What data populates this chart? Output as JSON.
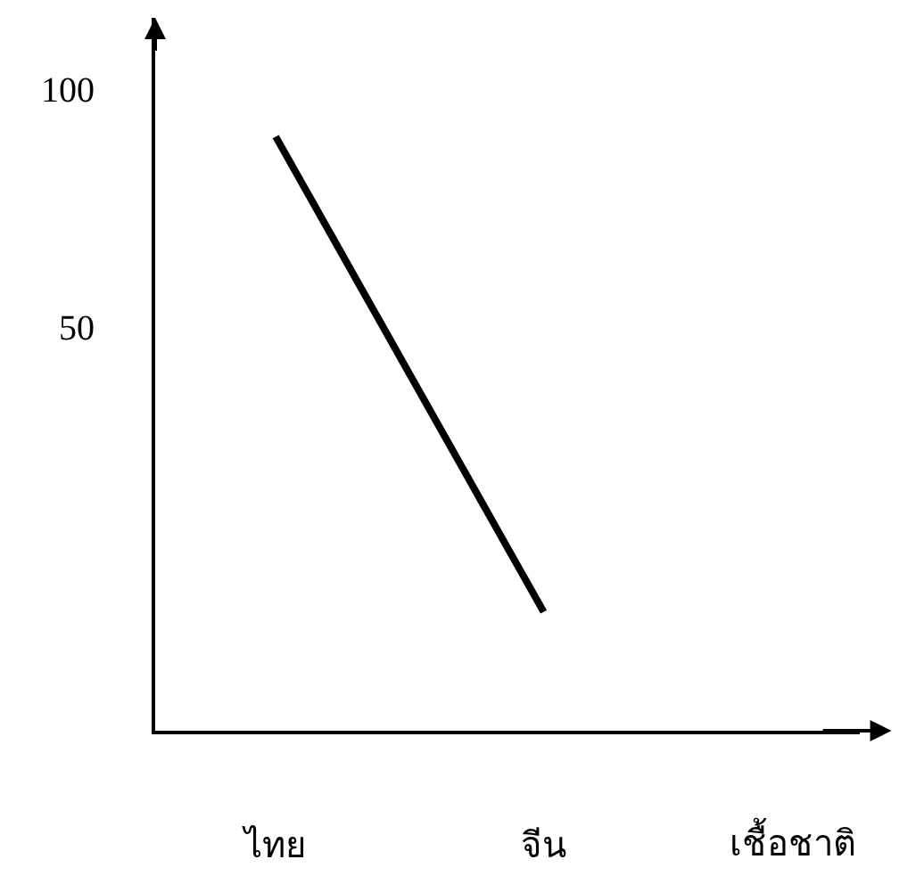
{
  "chart_data": {
    "type": "line",
    "xlabel": "เชื้อชาติ",
    "categories": [
      "ไทย",
      "จีน"
    ],
    "series": [
      {
        "color": "#000000",
        "values": [
          90,
          -10
        ]
      }
    ],
    "ylim": [
      -35,
      115
    ],
    "yticks": [
      50,
      100
    ],
    "marker": "none",
    "line_style": "solid"
  }
}
